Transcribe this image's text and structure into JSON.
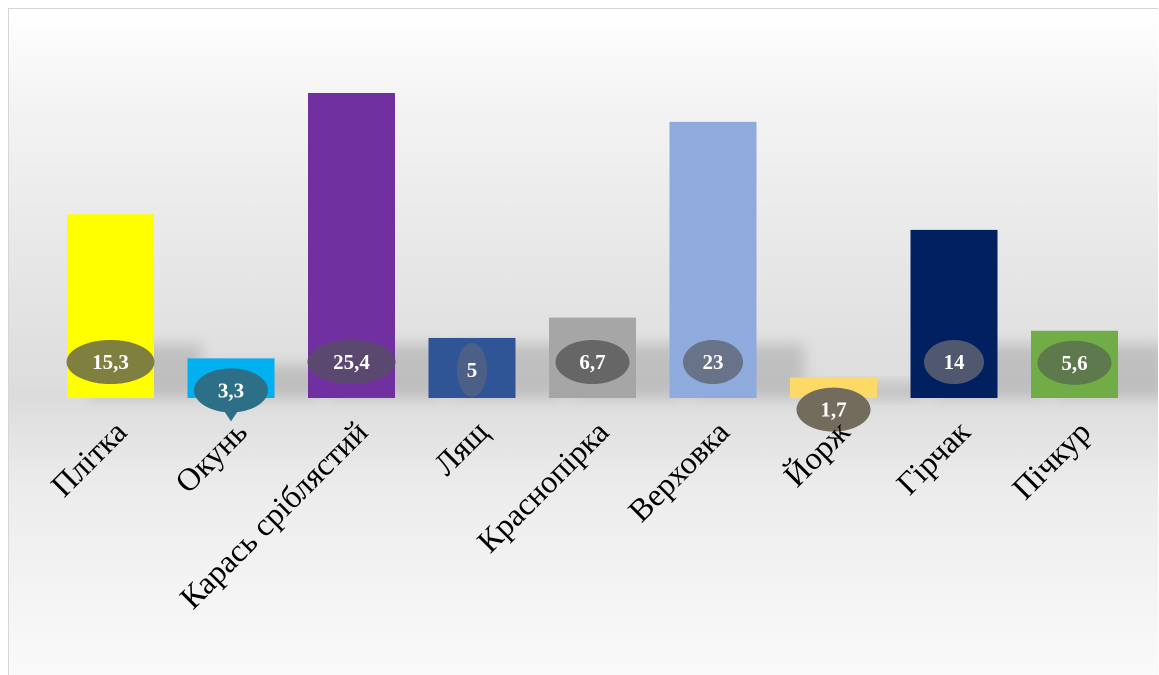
{
  "chart_data": {
    "type": "bar",
    "title": "",
    "xlabel": "",
    "ylabel": "",
    "ylim": [
      0,
      27
    ],
    "grid": false,
    "legend": "none",
    "categories": [
      "Плітка",
      "Окунь",
      "Карась сріблястий",
      "Лящ",
      "Краснопірка",
      "Верховка",
      "Йорж",
      "Гірчак",
      "Пічкур"
    ],
    "values": [
      15.3,
      3.3,
      25.4,
      5,
      6.7,
      23,
      1.7,
      14,
      5.6
    ],
    "value_labels": [
      "15,3",
      "3,3",
      "25,4",
      "5",
      "6,7",
      "23",
      "1,7",
      "14",
      "5,6"
    ],
    "bar_colors": [
      "#ffff00",
      "#00b0f0",
      "#7030a0",
      "#2f5597",
      "#a6a6a6",
      "#8faadc",
      "#ffd966",
      "#002060",
      "#70ad47"
    ],
    "label_bubble_colors": [
      "#7f7f3f",
      "#2e6f88",
      "#5b4870",
      "#4c5f86",
      "#666666",
      "#687289",
      "#736c5c",
      "#505870",
      "#5e7a4c"
    ]
  }
}
